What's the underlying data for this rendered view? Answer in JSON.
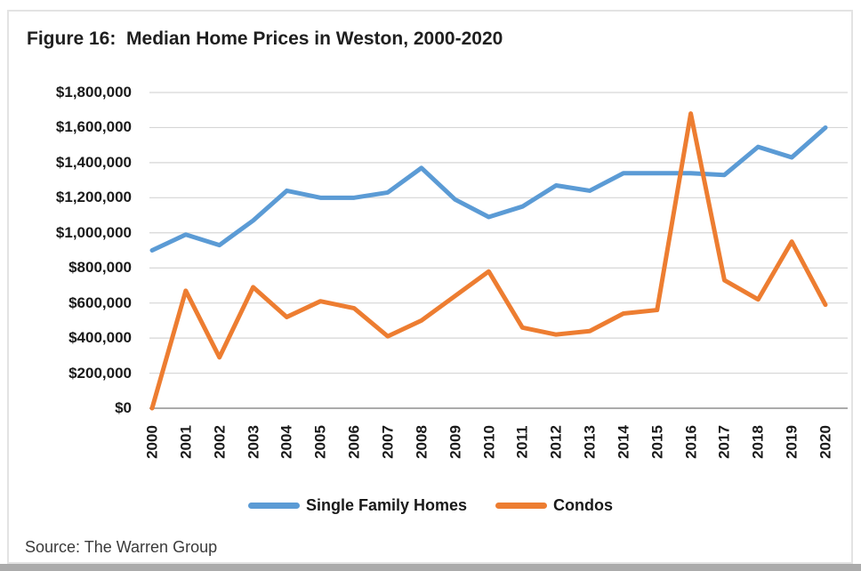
{
  "figure": {
    "title": "Figure 16:  Median Home Prices in Weston, 2000-2020",
    "source": "Source: The Warren Group"
  },
  "colors": {
    "single_family_homes": "#5B9BD5",
    "condos": "#ED7D31",
    "gridline": "#D6D6D6",
    "axis_line": "#ABABAB",
    "text": "#1A1A1A"
  },
  "chart_data": {
    "type": "line",
    "title": "Figure 16:  Median Home Prices in Weston, 2000-2020",
    "xlabel": "",
    "ylabel": "",
    "x": [
      2000,
      2001,
      2002,
      2003,
      2004,
      2005,
      2006,
      2007,
      2008,
      2009,
      2010,
      2011,
      2012,
      2013,
      2014,
      2015,
      2016,
      2017,
      2018,
      2019,
      2020
    ],
    "series": [
      {
        "name": "Single Family Homes",
        "color": "#5B9BD5",
        "values": [
          900000,
          990000,
          930000,
          1070000,
          1240000,
          1200000,
          1200000,
          1230000,
          1370000,
          1190000,
          1090000,
          1150000,
          1270000,
          1240000,
          1340000,
          1340000,
          1340000,
          1330000,
          1490000,
          1430000,
          1600000
        ]
      },
      {
        "name": "Condos",
        "color": "#ED7D31",
        "values": [
          0,
          670000,
          290000,
          690000,
          520000,
          610000,
          570000,
          410000,
          500000,
          640000,
          780000,
          460000,
          420000,
          440000,
          540000,
          560000,
          1680000,
          730000,
          620000,
          950000,
          590000
        ]
      }
    ],
    "ylim": [
      0,
      1800000
    ],
    "ytick_step": 200000,
    "ytick_labels": [
      "$0",
      "$200,000",
      "$400,000",
      "$600,000",
      "$800,000",
      "$1,000,000",
      "$1,200,000",
      "$1,400,000",
      "$1,600,000",
      "$1,800,000"
    ],
    "grid": true,
    "legend_position": "bottom"
  }
}
